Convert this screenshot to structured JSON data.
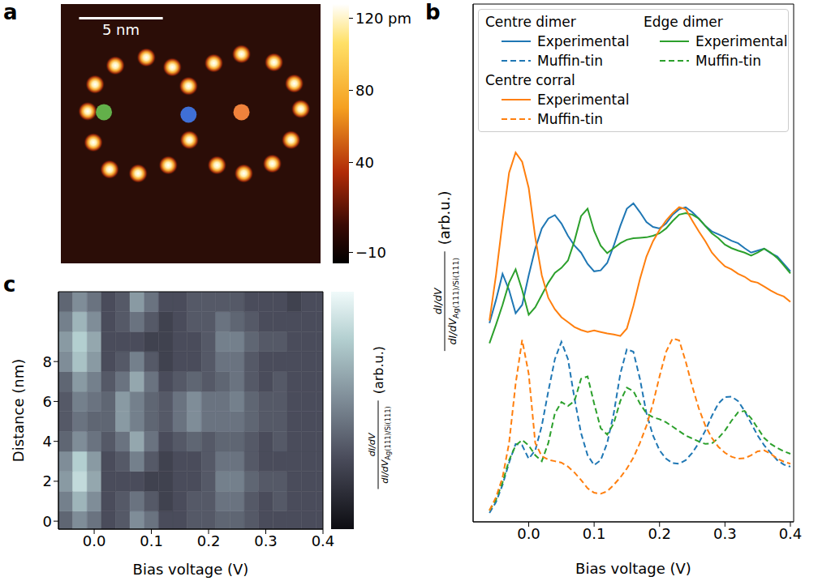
{
  "chart_data": [
    {
      "panel": "a",
      "type": "scatter",
      "xlim": [
        0,
        15.5
      ],
      "ylim": [
        0,
        15.4
      ],
      "tick_labels": false,
      "atoms": {
        "x": [
          3.25,
          5.1,
          6.65,
          2.04,
          1.6,
          1.94,
          2.91,
          4.61,
          6.41,
          7.62,
          7.67,
          9.13,
          10.78,
          12.72,
          13.93,
          14.32,
          13.74,
          12.62,
          10.92,
          9.32
        ],
        "y": [
          11.75,
          12.23,
          11.65,
          10.63,
          9.03,
          7.18,
          5.58,
          5.34,
          5.83,
          10.53,
          7.33,
          11.89,
          12.43,
          11.94,
          10.68,
          9.17,
          7.33,
          5.92,
          5.34,
          5.83
        ]
      },
      "points": [
        {
          "x": 2.57,
          "y": 8.98,
          "color": "#63b04a"
        },
        {
          "x": 7.62,
          "y": 8.83,
          "color": "#3f6fd6"
        },
        {
          "x": 10.78,
          "y": 8.98,
          "color": "#f0823c"
        }
      ],
      "scale_bar": {
        "length": 5,
        "label": "5 nm"
      },
      "colorbar": {
        "range": [
          -16,
          128
        ],
        "ticks": [
          {
            "value": 120,
            "label": "120 pm"
          },
          80,
          40,
          {
            "value": -10,
            "label": "−10"
          }
        ]
      }
    },
    {
      "panel": "b",
      "type": "line",
      "x": [
        -0.06,
        -0.05,
        -0.04,
        -0.03,
        -0.02,
        -0.01,
        0,
        0.01,
        0.02,
        0.03,
        0.04,
        0.05,
        0.06,
        0.07,
        0.08,
        0.09,
        0.1,
        0.11,
        0.12,
        0.13,
        0.14,
        0.15,
        0.16,
        0.17,
        0.18,
        0.19,
        0.2,
        0.21,
        0.22,
        0.23,
        0.24,
        0.25,
        0.26,
        0.27,
        0.28,
        0.29,
        0.3,
        0.31,
        0.32,
        0.33,
        0.34,
        0.35,
        0.36,
        0.37,
        0.38,
        0.39,
        0.4
      ],
      "xlim": [
        -0.085,
        0.405
      ],
      "ylim": [
        0,
        105
      ],
      "xticks": [
        {
          "value": 0,
          "label": "0.0"
        },
        {
          "value": 0.1,
          "label": "0.1"
        },
        {
          "value": 0.2,
          "label": "0.2"
        },
        {
          "value": 0.3,
          "label": "0.3"
        },
        {
          "value": 0.4,
          "label": "0.4"
        }
      ],
      "tick_labels": "x",
      "xlabel": "Bias voltage (V)",
      "ylabel": {
        "numerator": "dI/dV",
        "denominator": "dI/dV",
        "subscript": "Ag(111)/Si(111)",
        "unit": "(arb.u.)"
      },
      "legend": "upper left",
      "series": [
        {
          "name": "Experimental",
          "group": "Centre dimer",
          "color": "#1f77b4",
          "line_style": "solid",
          "values": [
            40.3,
            45,
            50.3,
            47,
            42.3,
            44,
            50,
            55.4,
            59.5,
            61.5,
            62.2,
            60.5,
            58,
            56,
            54.6,
            52.3,
            50.8,
            51,
            52.5,
            56,
            60,
            63.5,
            64.6,
            62.8,
            60.8,
            59.8,
            59.5,
            60.5,
            62.3,
            63.4,
            63.8,
            62.8,
            61.5,
            60,
            58.9,
            58.3,
            57.7,
            57,
            56.5,
            55.5,
            54.6,
            55,
            55.4,
            54.5,
            53.8,
            52.3,
            50.8
          ]
        },
        {
          "name": "Muffin-tin",
          "group": "Centre dimer",
          "color": "#1f77b4",
          "line_style": "dashed",
          "values": [
            1.8,
            4,
            7.5,
            12,
            15.8,
            15.5,
            12.8,
            14.5,
            19.5,
            26.5,
            33,
            36.5,
            33,
            25,
            18,
            13.5,
            11.5,
            12.5,
            16,
            22,
            30,
            35,
            34.5,
            29,
            22,
            17.5,
            14.5,
            12.8,
            11.9,
            11.8,
            12.5,
            14,
            16,
            18.5,
            21.5,
            24,
            25.3,
            25.4,
            24.5,
            22.5,
            20,
            17.5,
            15.5,
            14,
            12.5,
            11.6,
            11.2
          ]
        },
        {
          "name": "Experimental",
          "group": "Edge dimer",
          "color": "#2ca02c",
          "line_style": "solid",
          "values": [
            36.2,
            40,
            44,
            48.5,
            51.2,
            47,
            42,
            43.5,
            46,
            48.5,
            50.5,
            51.5,
            53,
            57,
            62,
            63.5,
            59,
            56,
            54.5,
            55.5,
            56.5,
            57.2,
            57.5,
            57.6,
            57.7,
            58,
            58.5,
            59.5,
            61,
            62.3,
            62.6,
            62.3,
            61.5,
            60,
            58.5,
            57.5,
            56.2,
            55.5,
            55,
            54.6,
            54,
            54.6,
            55.4,
            54.6,
            53.5,
            52,
            50.4
          ]
        },
        {
          "name": "Muffin-tin",
          "group": "Edge dimer",
          "color": "#2ca02c",
          "line_style": "dashed",
          "values": [
            2.3,
            4.5,
            8,
            12.5,
            15.5,
            16.6,
            15.5,
            13.5,
            12.3,
            16,
            22,
            24.3,
            23.5,
            24.5,
            29,
            29.5,
            24,
            19,
            17.7,
            20,
            24.5,
            27.2,
            26.5,
            24,
            22,
            21.2,
            20.8,
            20.2,
            19.3,
            18.4,
            17.5,
            16.9,
            16.3,
            15.8,
            15.9,
            17,
            18.5,
            20.5,
            22.2,
            22.5,
            21,
            19,
            17,
            15.8,
            15,
            14.3,
            13.8
          ]
        },
        {
          "name": "Experimental",
          "group": "Centre corral",
          "color": "#ff7f0e",
          "line_style": "solid",
          "values": [
            40.8,
            50,
            60.8,
            70.8,
            74.9,
            73,
            67.7,
            57.7,
            50,
            45.4,
            43.1,
            41.5,
            40.5,
            39.5,
            38.9,
            38.5,
            38.8,
            38.5,
            38.2,
            38,
            37.7,
            39.2,
            43.8,
            49.2,
            53.8,
            56.9,
            59.2,
            61.1,
            62.6,
            63.8,
            63.4,
            61.1,
            58.9,
            56.9,
            54.6,
            53.1,
            51.8,
            51.2,
            50.3,
            49.7,
            48.8,
            48.5,
            47.7,
            46.9,
            46.2,
            45.7,
            44.6
          ]
        },
        {
          "name": "Muffin-tin",
          "group": "Centre corral",
          "color": "#ff7f0e",
          "line_style": "dashed",
          "values": [
            2.3,
            5,
            9,
            16,
            28,
            36.9,
            30,
            16,
            13.3,
            12.6,
            12.3,
            12,
            11.2,
            10,
            8.5,
            6.8,
            5.9,
            5.7,
            6.2,
            7.5,
            9,
            10.8,
            13,
            16,
            19.5,
            24,
            29.5,
            34.5,
            37.2,
            36.8,
            32.5,
            27.5,
            23,
            19.5,
            17,
            15.2,
            14,
            13.2,
            12.8,
            12.9,
            13.5,
            14.3,
            14.5,
            13.8,
            12.8,
            12.2,
            11.8
          ]
        }
      ]
    },
    {
      "panel": "c",
      "type": "heatmap",
      "x": [
        -0.05,
        -0.025,
        0,
        0.025,
        0.05,
        0.075,
        0.1,
        0.125,
        0.15,
        0.175,
        0.2,
        0.225,
        0.25,
        0.275,
        0.3,
        0.325,
        0.35,
        0.375,
        0.4
      ],
      "y": [
        0,
        1,
        2,
        3,
        4,
        5,
        6,
        7,
        8,
        9,
        10,
        11
      ],
      "cells": [
        [
          0.4,
          0.55,
          0.45,
          0.3,
          0.35,
          0.55,
          0.45,
          0.3,
          0.3,
          0.35,
          0.35,
          0.4,
          0.4,
          0.35,
          0.3,
          0.3,
          0.3,
          0.3,
          0.3
        ],
        [
          0.5,
          0.7,
          0.55,
          0.3,
          0.35,
          0.45,
          0.35,
          0.25,
          0.3,
          0.35,
          0.35,
          0.45,
          0.45,
          0.35,
          0.3,
          0.35,
          0.3,
          0.3,
          0.3
        ],
        [
          0.6,
          0.85,
          0.65,
          0.3,
          0.3,
          0.3,
          0.25,
          0.25,
          0.3,
          0.3,
          0.35,
          0.5,
          0.5,
          0.4,
          0.35,
          0.35,
          0.3,
          0.3,
          0.3
        ],
        [
          0.55,
          0.8,
          0.6,
          0.3,
          0.35,
          0.5,
          0.35,
          0.25,
          0.3,
          0.3,
          0.35,
          0.45,
          0.45,
          0.35,
          0.3,
          0.3,
          0.3,
          0.3,
          0.3
        ],
        [
          0.4,
          0.55,
          0.45,
          0.35,
          0.45,
          0.65,
          0.45,
          0.3,
          0.35,
          0.4,
          0.35,
          0.4,
          0.4,
          0.35,
          0.3,
          0.35,
          0.3,
          0.3,
          0.3
        ],
        [
          0.35,
          0.45,
          0.4,
          0.4,
          0.6,
          0.5,
          0.4,
          0.35,
          0.45,
          0.55,
          0.45,
          0.45,
          0.45,
          0.4,
          0.35,
          0.35,
          0.3,
          0.3,
          0.3
        ],
        [
          0.35,
          0.5,
          0.45,
          0.4,
          0.6,
          0.5,
          0.4,
          0.35,
          0.45,
          0.55,
          0.45,
          0.45,
          0.5,
          0.4,
          0.35,
          0.35,
          0.3,
          0.3,
          0.3
        ],
        [
          0.4,
          0.6,
          0.5,
          0.35,
          0.45,
          0.65,
          0.45,
          0.3,
          0.35,
          0.4,
          0.35,
          0.4,
          0.45,
          0.35,
          0.3,
          0.35,
          0.3,
          0.3,
          0.3
        ],
        [
          0.55,
          0.75,
          0.6,
          0.3,
          0.35,
          0.5,
          0.35,
          0.25,
          0.3,
          0.3,
          0.35,
          0.45,
          0.45,
          0.35,
          0.3,
          0.3,
          0.3,
          0.3,
          0.3
        ],
        [
          0.6,
          0.8,
          0.65,
          0.3,
          0.3,
          0.3,
          0.25,
          0.25,
          0.3,
          0.3,
          0.35,
          0.5,
          0.5,
          0.4,
          0.35,
          0.35,
          0.3,
          0.3,
          0.3
        ],
        [
          0.5,
          0.7,
          0.55,
          0.3,
          0.35,
          0.45,
          0.35,
          0.25,
          0.3,
          0.35,
          0.35,
          0.45,
          0.4,
          0.35,
          0.3,
          0.3,
          0.3,
          0.3,
          0.3
        ],
        [
          0.4,
          0.55,
          0.45,
          0.3,
          0.35,
          0.6,
          0.45,
          0.3,
          0.3,
          0.35,
          0.35,
          0.35,
          0.35,
          0.3,
          0.3,
          0.3,
          0.25,
          0.3,
          0.3
        ]
      ],
      "xlim": [
        -0.0625,
        0.4
      ],
      "ylim": [
        -0.4,
        11.5
      ],
      "xticks": [
        {
          "value": 0,
          "label": "0.0"
        },
        {
          "value": 0.1,
          "label": "0.1"
        },
        {
          "value": 0.2,
          "label": "0.2"
        },
        {
          "value": 0.3,
          "label": "0.3"
        },
        {
          "value": 0.4,
          "label": "0.4"
        }
      ],
      "yticks": [
        0,
        2,
        4,
        6,
        8
      ],
      "xlabel": "Bias voltage (V)",
      "ylabel": "Distance (nm)",
      "colorbar": {
        "range": [
          0,
          1
        ],
        "label": {
          "numerator": "dI/dV",
          "denominator": "dI/dV",
          "subscript": "Ag(111)/Si(111)",
          "unit": "(arb.u.)"
        }
      }
    }
  ]
}
